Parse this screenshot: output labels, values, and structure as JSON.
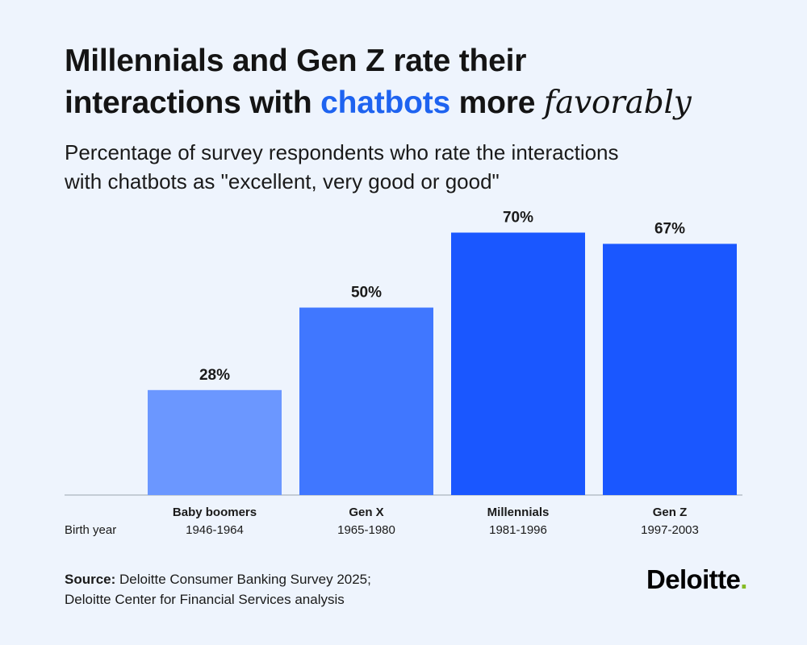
{
  "title": {
    "line1": "Millennials and Gen Z rate their",
    "line2_prefix": "interactions with ",
    "line2_highlight": "chatbots",
    "line2_mid": " more ",
    "line2_emphasis": "favorably"
  },
  "subtitle": {
    "line1": "Percentage of survey respondents who rate the interactions",
    "line2": "with chatbots as \"excellent, very good or good\""
  },
  "chart_data": {
    "type": "bar",
    "categories": [
      "Baby boomers",
      "Gen X",
      "Millennials",
      "Gen Z"
    ],
    "category_sublabels": [
      "1946-1964",
      "1965-1980",
      "1981-1996",
      "1997-2003"
    ],
    "values": [
      28,
      50,
      70,
      67
    ],
    "value_labels": [
      "28%",
      "50%",
      "70%",
      "67%"
    ],
    "bar_colors": [
      "#6b97ff",
      "#4077ff",
      "#1a57ff",
      "#1a57ff"
    ],
    "xlabel": "Birth year",
    "ylabel": "",
    "ylim": [
      0,
      100
    ],
    "grid": false,
    "legend": "none"
  },
  "source": {
    "label": "Source:",
    "line1": " Deloitte Consumer Banking Survey 2025;",
    "line2": "Deloitte Center for Financial Services analysis"
  },
  "logo": {
    "text": "Deloitte",
    "dot": ".",
    "dot_color": "#86bc25"
  },
  "colors": {
    "background": "#eef4fd",
    "accent": "#1e63f0"
  }
}
